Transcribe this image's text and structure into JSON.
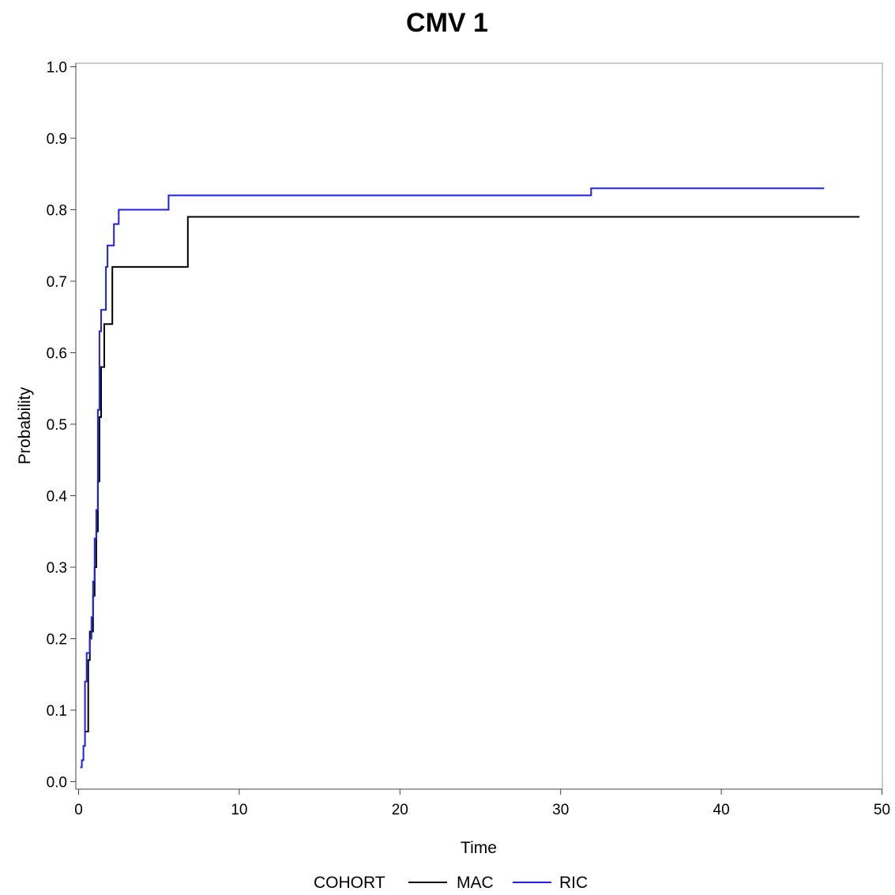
{
  "chart_data": {
    "type": "line",
    "step": true,
    "title": "CMV 1",
    "xlabel": "Time",
    "ylabel": "Probability",
    "xlim": [
      0,
      50
    ],
    "ylim": [
      0,
      1.0
    ],
    "xticks": [
      0,
      10,
      20,
      30,
      40,
      50
    ],
    "xtick_labels": [
      "0",
      "10",
      "20",
      "30",
      "40",
      "50"
    ],
    "yticks": [
      0,
      0.1,
      0.2,
      0.3,
      0.4,
      0.5,
      0.6,
      0.7,
      0.8,
      0.9,
      1.0
    ],
    "ytick_labels": [
      "0.0",
      "0.1",
      "0.2",
      "0.3",
      "0.4",
      "0.5",
      "0.6",
      "0.7",
      "0.8",
      "0.9",
      "1.0"
    ],
    "grid": false,
    "legend": {
      "title": "COHORT",
      "placement": "bottom-center"
    },
    "series": [
      {
        "name": "MAC",
        "color": "#000000",
        "x": [
          0.4,
          0.6,
          0.7,
          0.9,
          1.0,
          1.1,
          1.2,
          1.3,
          1.4,
          1.6,
          1.9,
          2.1,
          6.8,
          48.6
        ],
        "y": [
          0.07,
          0.17,
          0.21,
          0.26,
          0.3,
          0.35,
          0.42,
          0.51,
          0.58,
          0.64,
          0.64,
          0.72,
          0.79,
          0.79
        ]
      },
      {
        "name": "RIC",
        "color": "#1f1fe6",
        "x": [
          0.1,
          0.2,
          0.3,
          0.4,
          0.5,
          0.7,
          0.8,
          0.9,
          1.0,
          1.1,
          1.2,
          1.3,
          1.4,
          1.7,
          1.8,
          2.2,
          2.5,
          5.6,
          31.9,
          46.4
        ],
        "y": [
          0.02,
          0.03,
          0.05,
          0.14,
          0.18,
          0.2,
          0.23,
          0.28,
          0.34,
          0.38,
          0.52,
          0.63,
          0.66,
          0.72,
          0.75,
          0.78,
          0.8,
          0.82,
          0.83,
          0.83
        ]
      }
    ]
  }
}
